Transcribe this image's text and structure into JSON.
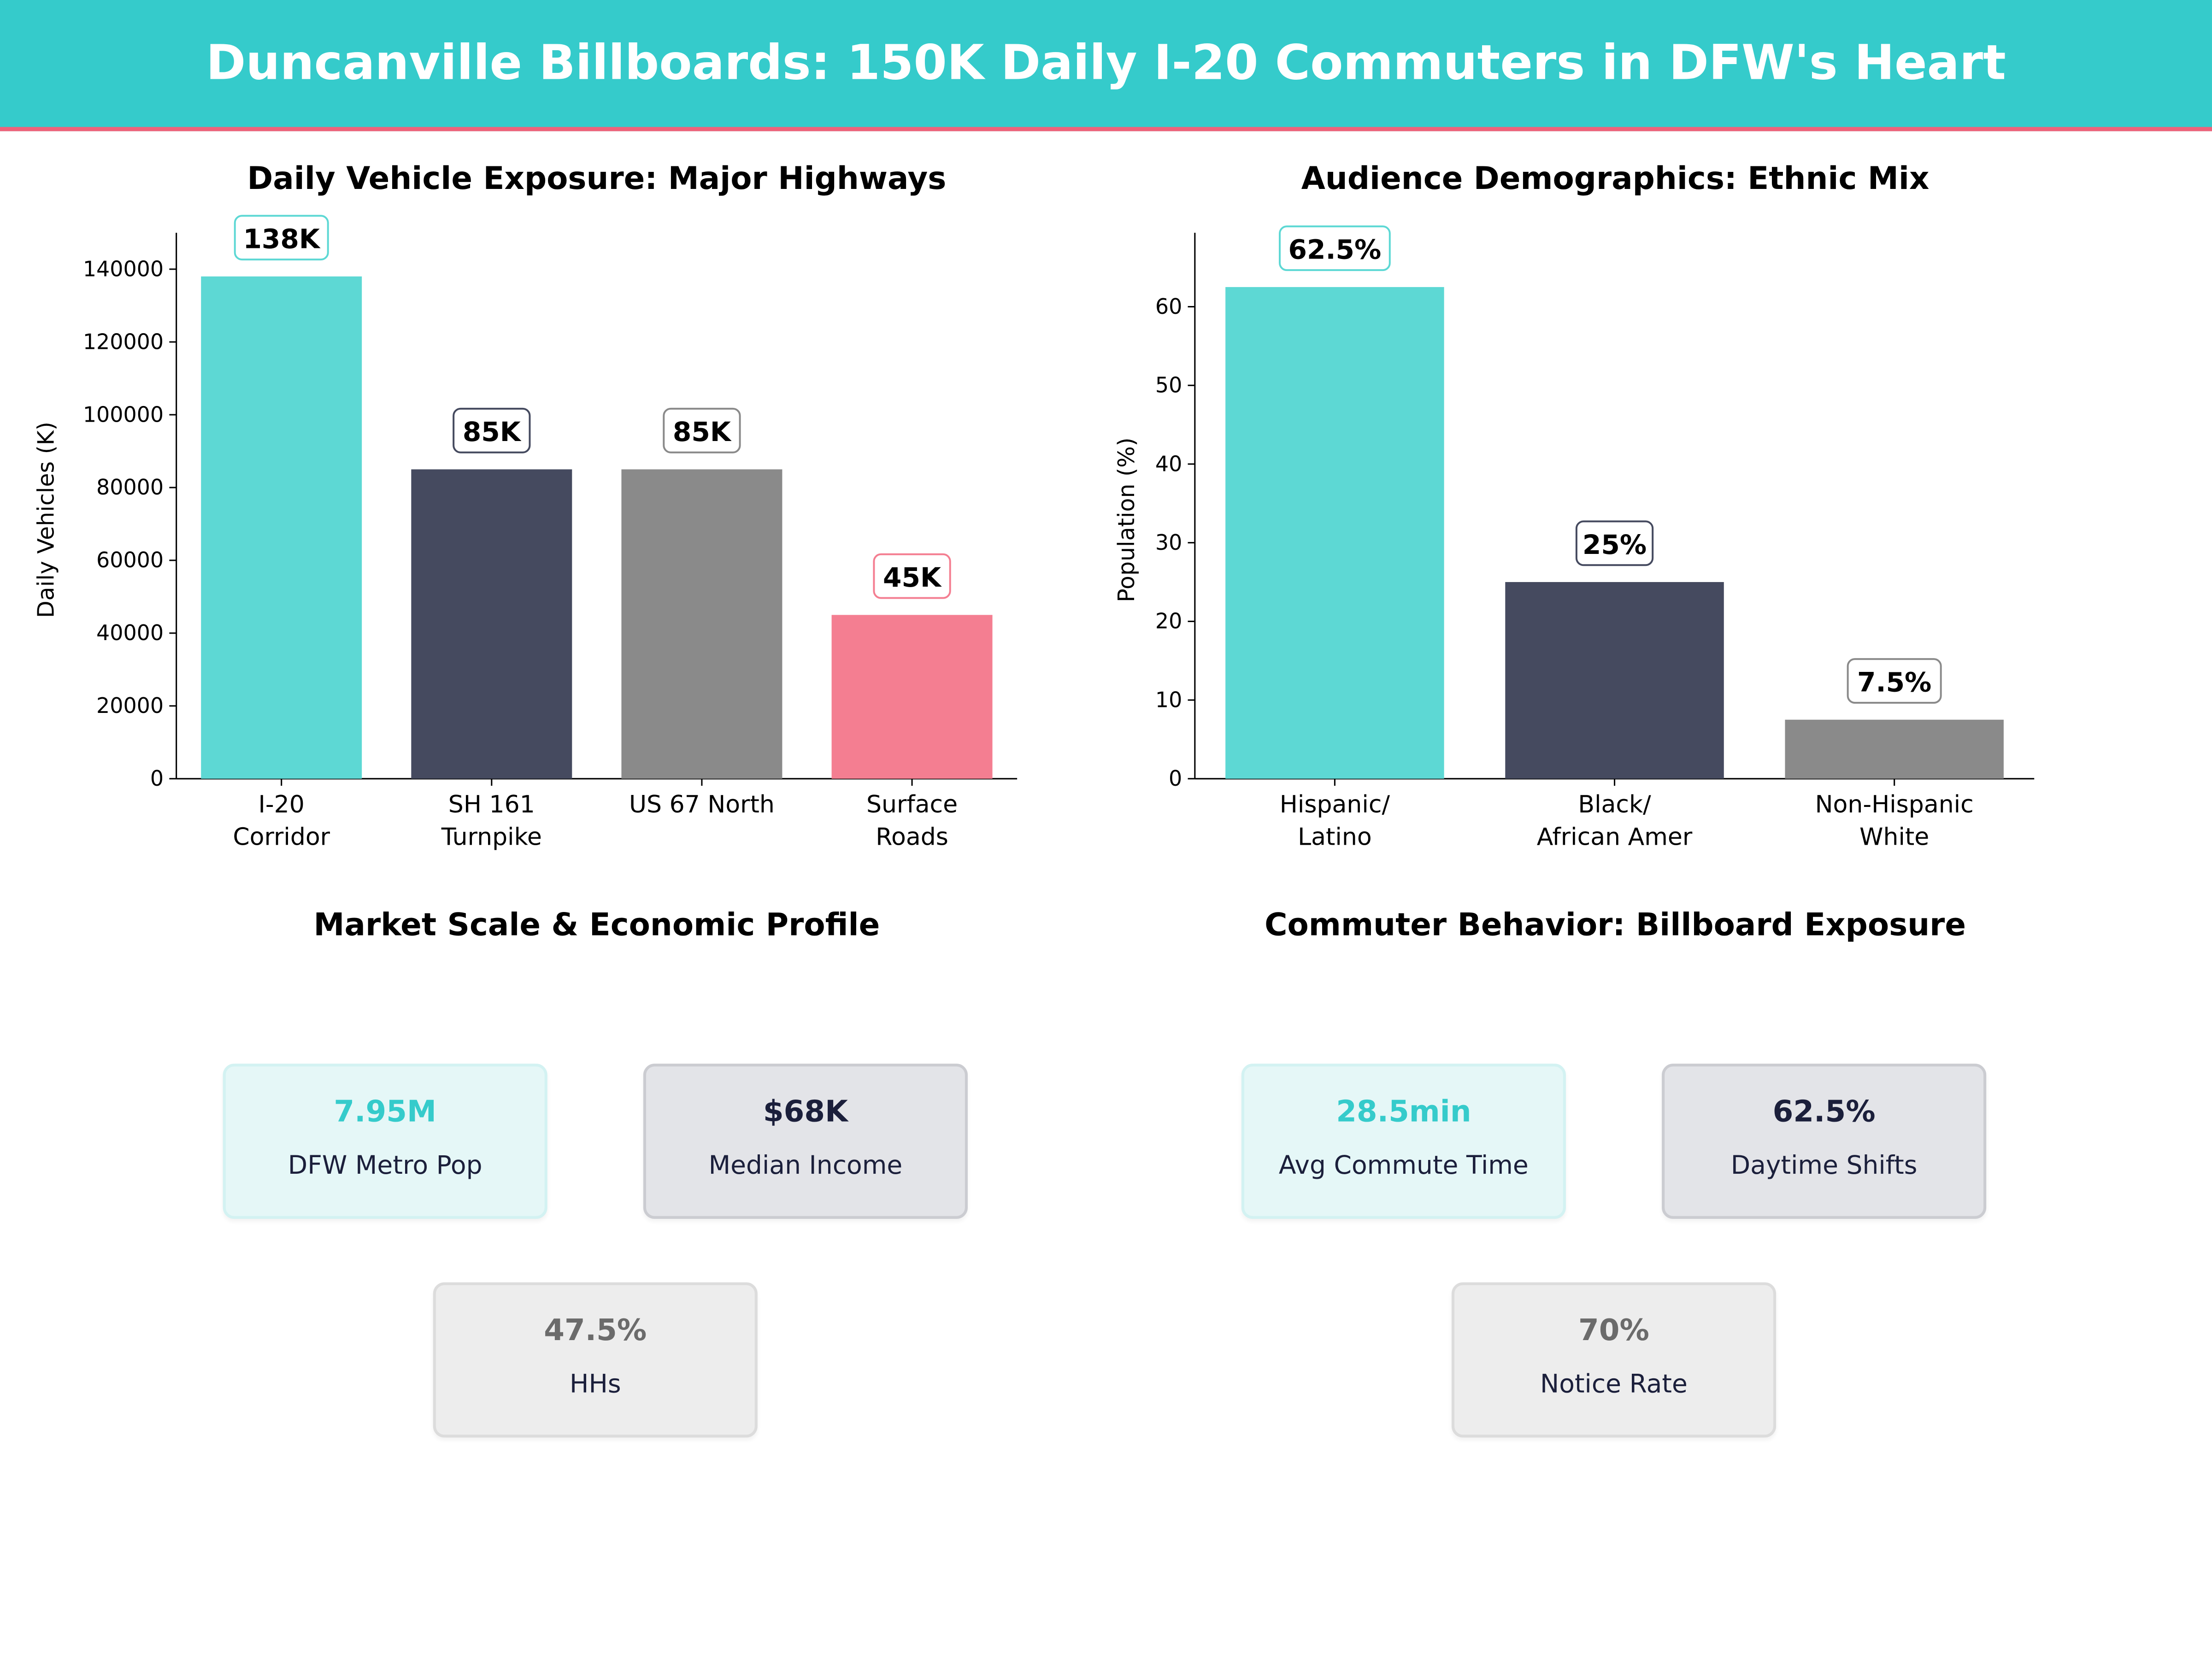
{
  "header": {
    "title": "Duncanville Billboards: 150K Daily I-20 Commuters in DFW's Heart"
  },
  "colors": {
    "teal": "#5DD8D4",
    "navy": "#454A5F",
    "grey": "#8A8A8A",
    "pink": "#F47E91",
    "header_bg": "#35CBCB",
    "header_line": "#F0627A"
  },
  "chart_data": [
    {
      "type": "bar",
      "title": "Daily Vehicle Exposure: Major Highways",
      "xlabel": "",
      "ylabel": "Daily Vehicles (K)",
      "categories": [
        "I-20\nCorridor",
        "SH 161\nTurnpike",
        "US 67 North",
        "Surface\nRoads"
      ],
      "values": [
        138000,
        85000,
        85000,
        45000
      ],
      "data_labels": [
        "138K",
        "85K",
        "85K",
        "45K"
      ],
      "bar_colors": [
        "#5DD8D4",
        "#454A5F",
        "#8A8A8A",
        "#F47E91"
      ],
      "yticks": [
        0,
        20000,
        40000,
        60000,
        80000,
        100000,
        120000,
        140000
      ],
      "ylim": [
        0,
        150000
      ],
      "grid": false
    },
    {
      "type": "bar",
      "title": "Audience Demographics: Ethnic Mix",
      "xlabel": "",
      "ylabel": "Population (%)",
      "categories": [
        "Hispanic/\nLatino",
        "Black/\nAfrican Amer",
        "Non-Hispanic\nWhite"
      ],
      "values": [
        62.5,
        25,
        7.5
      ],
      "data_labels": [
        "62.5%",
        "25%",
        "7.5%"
      ],
      "bar_colors": [
        "#5DD8D4",
        "#454A5F",
        "#8A8A8A"
      ],
      "yticks": [
        0,
        10,
        20,
        30,
        40,
        50,
        60
      ],
      "ylim": [
        0,
        69.4
      ],
      "grid": false
    }
  ],
  "market": {
    "title": "Market Scale & Economic Profile",
    "cards": [
      {
        "value": "7.95M",
        "label": "DFW Metro Pop",
        "color": "#35CBCB"
      },
      {
        "value": "$68K",
        "label": "Median Income",
        "color": "#1B1F3B"
      },
      {
        "value": "47.5%",
        "label": "HHs",
        "color": "#6B6B6B"
      }
    ]
  },
  "commuter": {
    "title": "Commuter Behavior: Billboard Exposure",
    "cards": [
      {
        "value": "28.5min",
        "label": "Avg Commute Time",
        "color": "#35CBCB"
      },
      {
        "value": "62.5%",
        "label": "Daytime Shifts",
        "color": "#1B1F3B"
      },
      {
        "value": "70%",
        "label": "Notice Rate",
        "color": "#6B6B6B"
      }
    ]
  }
}
